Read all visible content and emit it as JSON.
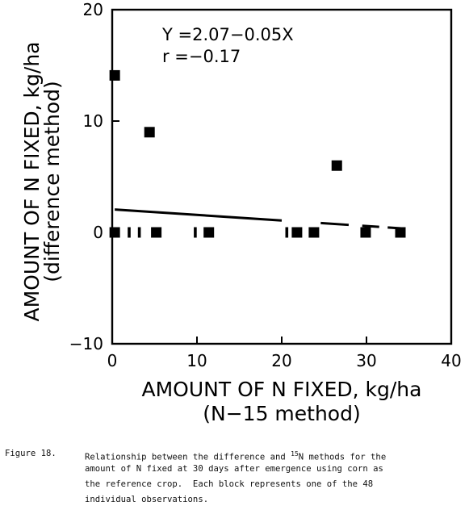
{
  "chart_data": {
    "type": "scatter",
    "equation": "Y =2.07−0.05X",
    "r_text": "r =−0.17",
    "xlabel": "AMOUNT OF N FIXED, kg/ha",
    "xlabel_sub": "(N−15 method)",
    "ylabel": "AMOUNT OF N FIXED, kg/ha",
    "ylabel_sub": "(difference method)",
    "xlim": [
      0,
      40
    ],
    "ylim": [
      -10,
      20
    ],
    "xticks": [
      "0",
      "10",
      "20",
      "30",
      "40"
    ],
    "yticks": [
      "−10",
      "0",
      "10",
      "20"
    ],
    "xtick_values": [
      0,
      10,
      20,
      30,
      40
    ],
    "ytick_values": [
      -10,
      0,
      10,
      20
    ],
    "points": [
      {
        "x": 0.3,
        "y": 14.1
      },
      {
        "x": 4.4,
        "y": 9.0
      },
      {
        "x": 26.5,
        "y": 6.0
      },
      {
        "x": 0.3,
        "y": 0
      },
      {
        "x": 5.2,
        "y": 0
      },
      {
        "x": 11.4,
        "y": 0
      },
      {
        "x": 21.8,
        "y": 0
      },
      {
        "x": 23.8,
        "y": 0
      },
      {
        "x": 29.9,
        "y": 0
      },
      {
        "x": 34.0,
        "y": 0
      }
    ],
    "tick_marks_at_zero": [
      2.0,
      3.2,
      9.8,
      20.6
    ],
    "regression": {
      "intercept": 2.07,
      "slope": -0.05,
      "x_range": [
        0.3,
        34.3
      ]
    },
    "grid": false
  },
  "caption": {
    "label": "Figure 18.",
    "line1_pre": "Relationship between the difference and ",
    "line1_sup": "15",
    "line1_post": "N methods for the",
    "line2": "amount of N fixed at 30 days after emergence using corn as",
    "line3": "the reference crop.  Each block represents one of the 48",
    "line4": "individual observations."
  }
}
